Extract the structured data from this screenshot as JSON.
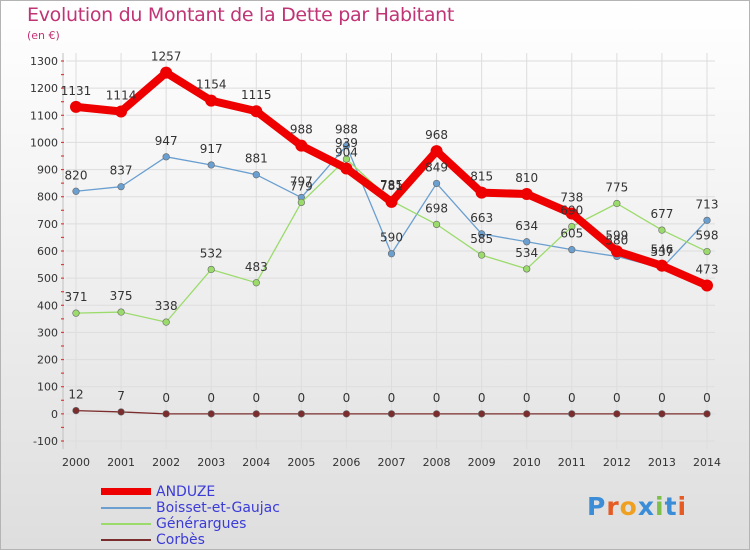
{
  "title": "Evolution du Montant de la Dette par Habitant",
  "unit": "(en €)",
  "logo": "Proxiti",
  "chart_data": {
    "type": "line",
    "x": [
      2000,
      2001,
      2002,
      2003,
      2004,
      2005,
      2006,
      2007,
      2008,
      2009,
      2010,
      2011,
      2012,
      2013,
      2014
    ],
    "ylim": [
      -100,
      1300
    ],
    "yticks": [
      -100,
      0,
      100,
      200,
      300,
      400,
      500,
      600,
      700,
      800,
      900,
      1000,
      1100,
      1200,
      1300
    ],
    "grid": true,
    "legend_position": "bottom-left",
    "series": [
      {
        "name": "ANDUZE",
        "color": "#ee0000",
        "values": [
          1131,
          1114,
          1257,
          1154,
          1115,
          988,
          904,
          781,
          968,
          815,
          810,
          738,
          599,
          546,
          473
        ]
      },
      {
        "name": "Boisset-et-Gaujac",
        "color": "#6a9fd0",
        "values": [
          820,
          837,
          947,
          917,
          881,
          797,
          988,
          590,
          849,
          663,
          634,
          605,
          580,
          537,
          713
        ]
      },
      {
        "name": "Générargues",
        "color": "#9bdb6b",
        "values": [
          371,
          375,
          338,
          532,
          483,
          779,
          939,
          785,
          698,
          585,
          534,
          690,
          775,
          677,
          598
        ]
      },
      {
        "name": "Corbès",
        "color": "#7b2c2c",
        "values": [
          12,
          7,
          0,
          0,
          0,
          0,
          0,
          0,
          0,
          0,
          0,
          0,
          0,
          0,
          0
        ]
      }
    ]
  }
}
